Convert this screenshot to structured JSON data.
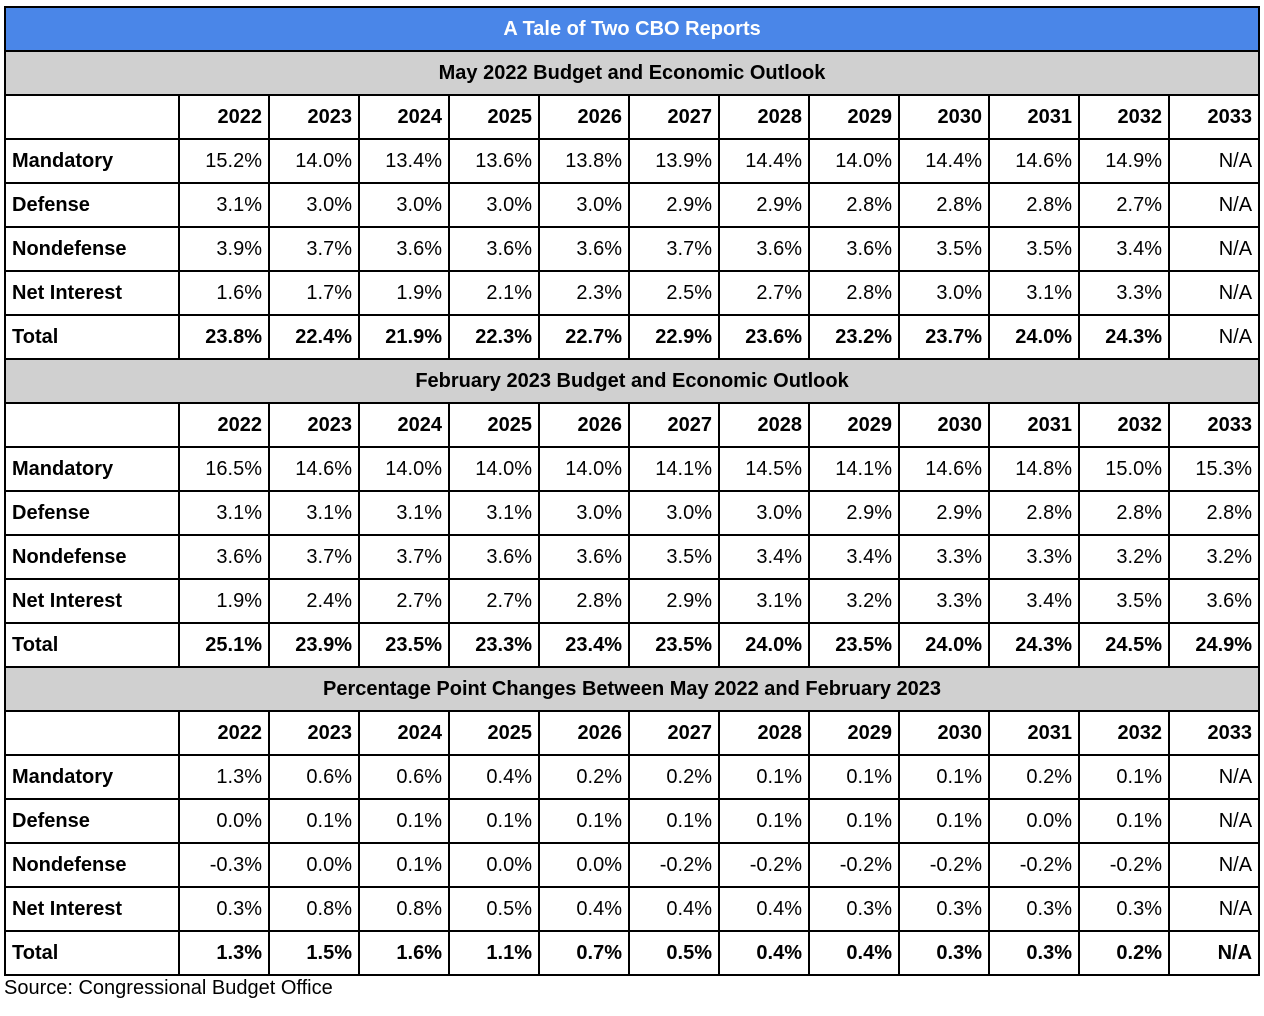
{
  "title": "A Tale of Two CBO Reports",
  "years": [
    "2022",
    "2023",
    "2024",
    "2025",
    "2026",
    "2027",
    "2028",
    "2029",
    "2030",
    "2031",
    "2032",
    "2033"
  ],
  "sections": [
    {
      "heading": "May 2022 Budget and Economic Outlook",
      "rows": [
        {
          "label": "Mandatory",
          "values": [
            "15.2%",
            "14.0%",
            "13.4%",
            "13.6%",
            "13.8%",
            "13.9%",
            "14.4%",
            "14.0%",
            "14.4%",
            "14.6%",
            "14.9%",
            "N/A"
          ]
        },
        {
          "label": "Defense",
          "values": [
            "3.1%",
            "3.0%",
            "3.0%",
            "3.0%",
            "3.0%",
            "2.9%",
            "2.9%",
            "2.8%",
            "2.8%",
            "2.8%",
            "2.7%",
            "N/A"
          ]
        },
        {
          "label": "Nondefense",
          "values": [
            "3.9%",
            "3.7%",
            "3.6%",
            "3.6%",
            "3.6%",
            "3.7%",
            "3.6%",
            "3.6%",
            "3.5%",
            "3.5%",
            "3.4%",
            "N/A"
          ]
        },
        {
          "label": "Net Interest",
          "values": [
            "1.6%",
            "1.7%",
            "1.9%",
            "2.1%",
            "2.3%",
            "2.5%",
            "2.7%",
            "2.8%",
            "3.0%",
            "3.1%",
            "3.3%",
            "N/A"
          ]
        },
        {
          "label": "Total",
          "values": [
            "23.8%",
            "22.4%",
            "21.9%",
            "22.3%",
            "22.7%",
            "22.9%",
            "23.6%",
            "23.2%",
            "23.7%",
            "24.0%",
            "24.3%",
            "N/A"
          ],
          "bold_values": true,
          "last_bold": false
        }
      ]
    },
    {
      "heading": "February 2023 Budget and Economic Outlook",
      "rows": [
        {
          "label": "Mandatory",
          "values": [
            "16.5%",
            "14.6%",
            "14.0%",
            "14.0%",
            "14.0%",
            "14.1%",
            "14.5%",
            "14.1%",
            "14.6%",
            "14.8%",
            "15.0%",
            "15.3%"
          ]
        },
        {
          "label": "Defense",
          "values": [
            "3.1%",
            "3.1%",
            "3.1%",
            "3.1%",
            "3.0%",
            "3.0%",
            "3.0%",
            "2.9%",
            "2.9%",
            "2.8%",
            "2.8%",
            "2.8%"
          ]
        },
        {
          "label": "Nondefense",
          "values": [
            "3.6%",
            "3.7%",
            "3.7%",
            "3.6%",
            "3.6%",
            "3.5%",
            "3.4%",
            "3.4%",
            "3.3%",
            "3.3%",
            "3.2%",
            "3.2%"
          ]
        },
        {
          "label": "Net Interest",
          "values": [
            "1.9%",
            "2.4%",
            "2.7%",
            "2.7%",
            "2.8%",
            "2.9%",
            "3.1%",
            "3.2%",
            "3.3%",
            "3.4%",
            "3.5%",
            "3.6%"
          ]
        },
        {
          "label": "Total",
          "values": [
            "25.1%",
            "23.9%",
            "23.5%",
            "23.3%",
            "23.4%",
            "23.5%",
            "24.0%",
            "23.5%",
            "24.0%",
            "24.3%",
            "24.5%",
            "24.9%"
          ],
          "bold_values": true,
          "last_bold": true
        }
      ]
    },
    {
      "heading": "Percentage Point Changes Between May 2022 and February 2023",
      "rows": [
        {
          "label": "Mandatory",
          "values": [
            "1.3%",
            "0.6%",
            "0.6%",
            "0.4%",
            "0.2%",
            "0.2%",
            "0.1%",
            "0.1%",
            "0.1%",
            "0.2%",
            "0.1%",
            "N/A"
          ]
        },
        {
          "label": "Defense",
          "values": [
            "0.0%",
            "0.1%",
            "0.1%",
            "0.1%",
            "0.1%",
            "0.1%",
            "0.1%",
            "0.1%",
            "0.1%",
            "0.0%",
            "0.1%",
            "N/A"
          ]
        },
        {
          "label": "Nondefense",
          "values": [
            "-0.3%",
            "0.0%",
            "0.1%",
            "0.0%",
            "0.0%",
            "-0.2%",
            "-0.2%",
            "-0.2%",
            "-0.2%",
            "-0.2%",
            "-0.2%",
            "N/A"
          ]
        },
        {
          "label": "Net Interest",
          "values": [
            "0.3%",
            "0.8%",
            "0.8%",
            "0.5%",
            "0.4%",
            "0.4%",
            "0.4%",
            "0.3%",
            "0.3%",
            "0.3%",
            "0.3%",
            "N/A"
          ]
        },
        {
          "label": "Total",
          "values": [
            "1.3%",
            "1.5%",
            "1.6%",
            "1.1%",
            "0.7%",
            "0.5%",
            "0.4%",
            "0.4%",
            "0.3%",
            "0.3%",
            "0.2%",
            "N/A"
          ],
          "bold_values": true,
          "last_bold": true
        }
      ]
    }
  ],
  "source": "Source: Congressional Budget Office",
  "colors": {
    "title_bg": "#4a86e8",
    "title_text": "#ffffff",
    "section_bg": "#d0d0d0",
    "border": "#000000"
  }
}
